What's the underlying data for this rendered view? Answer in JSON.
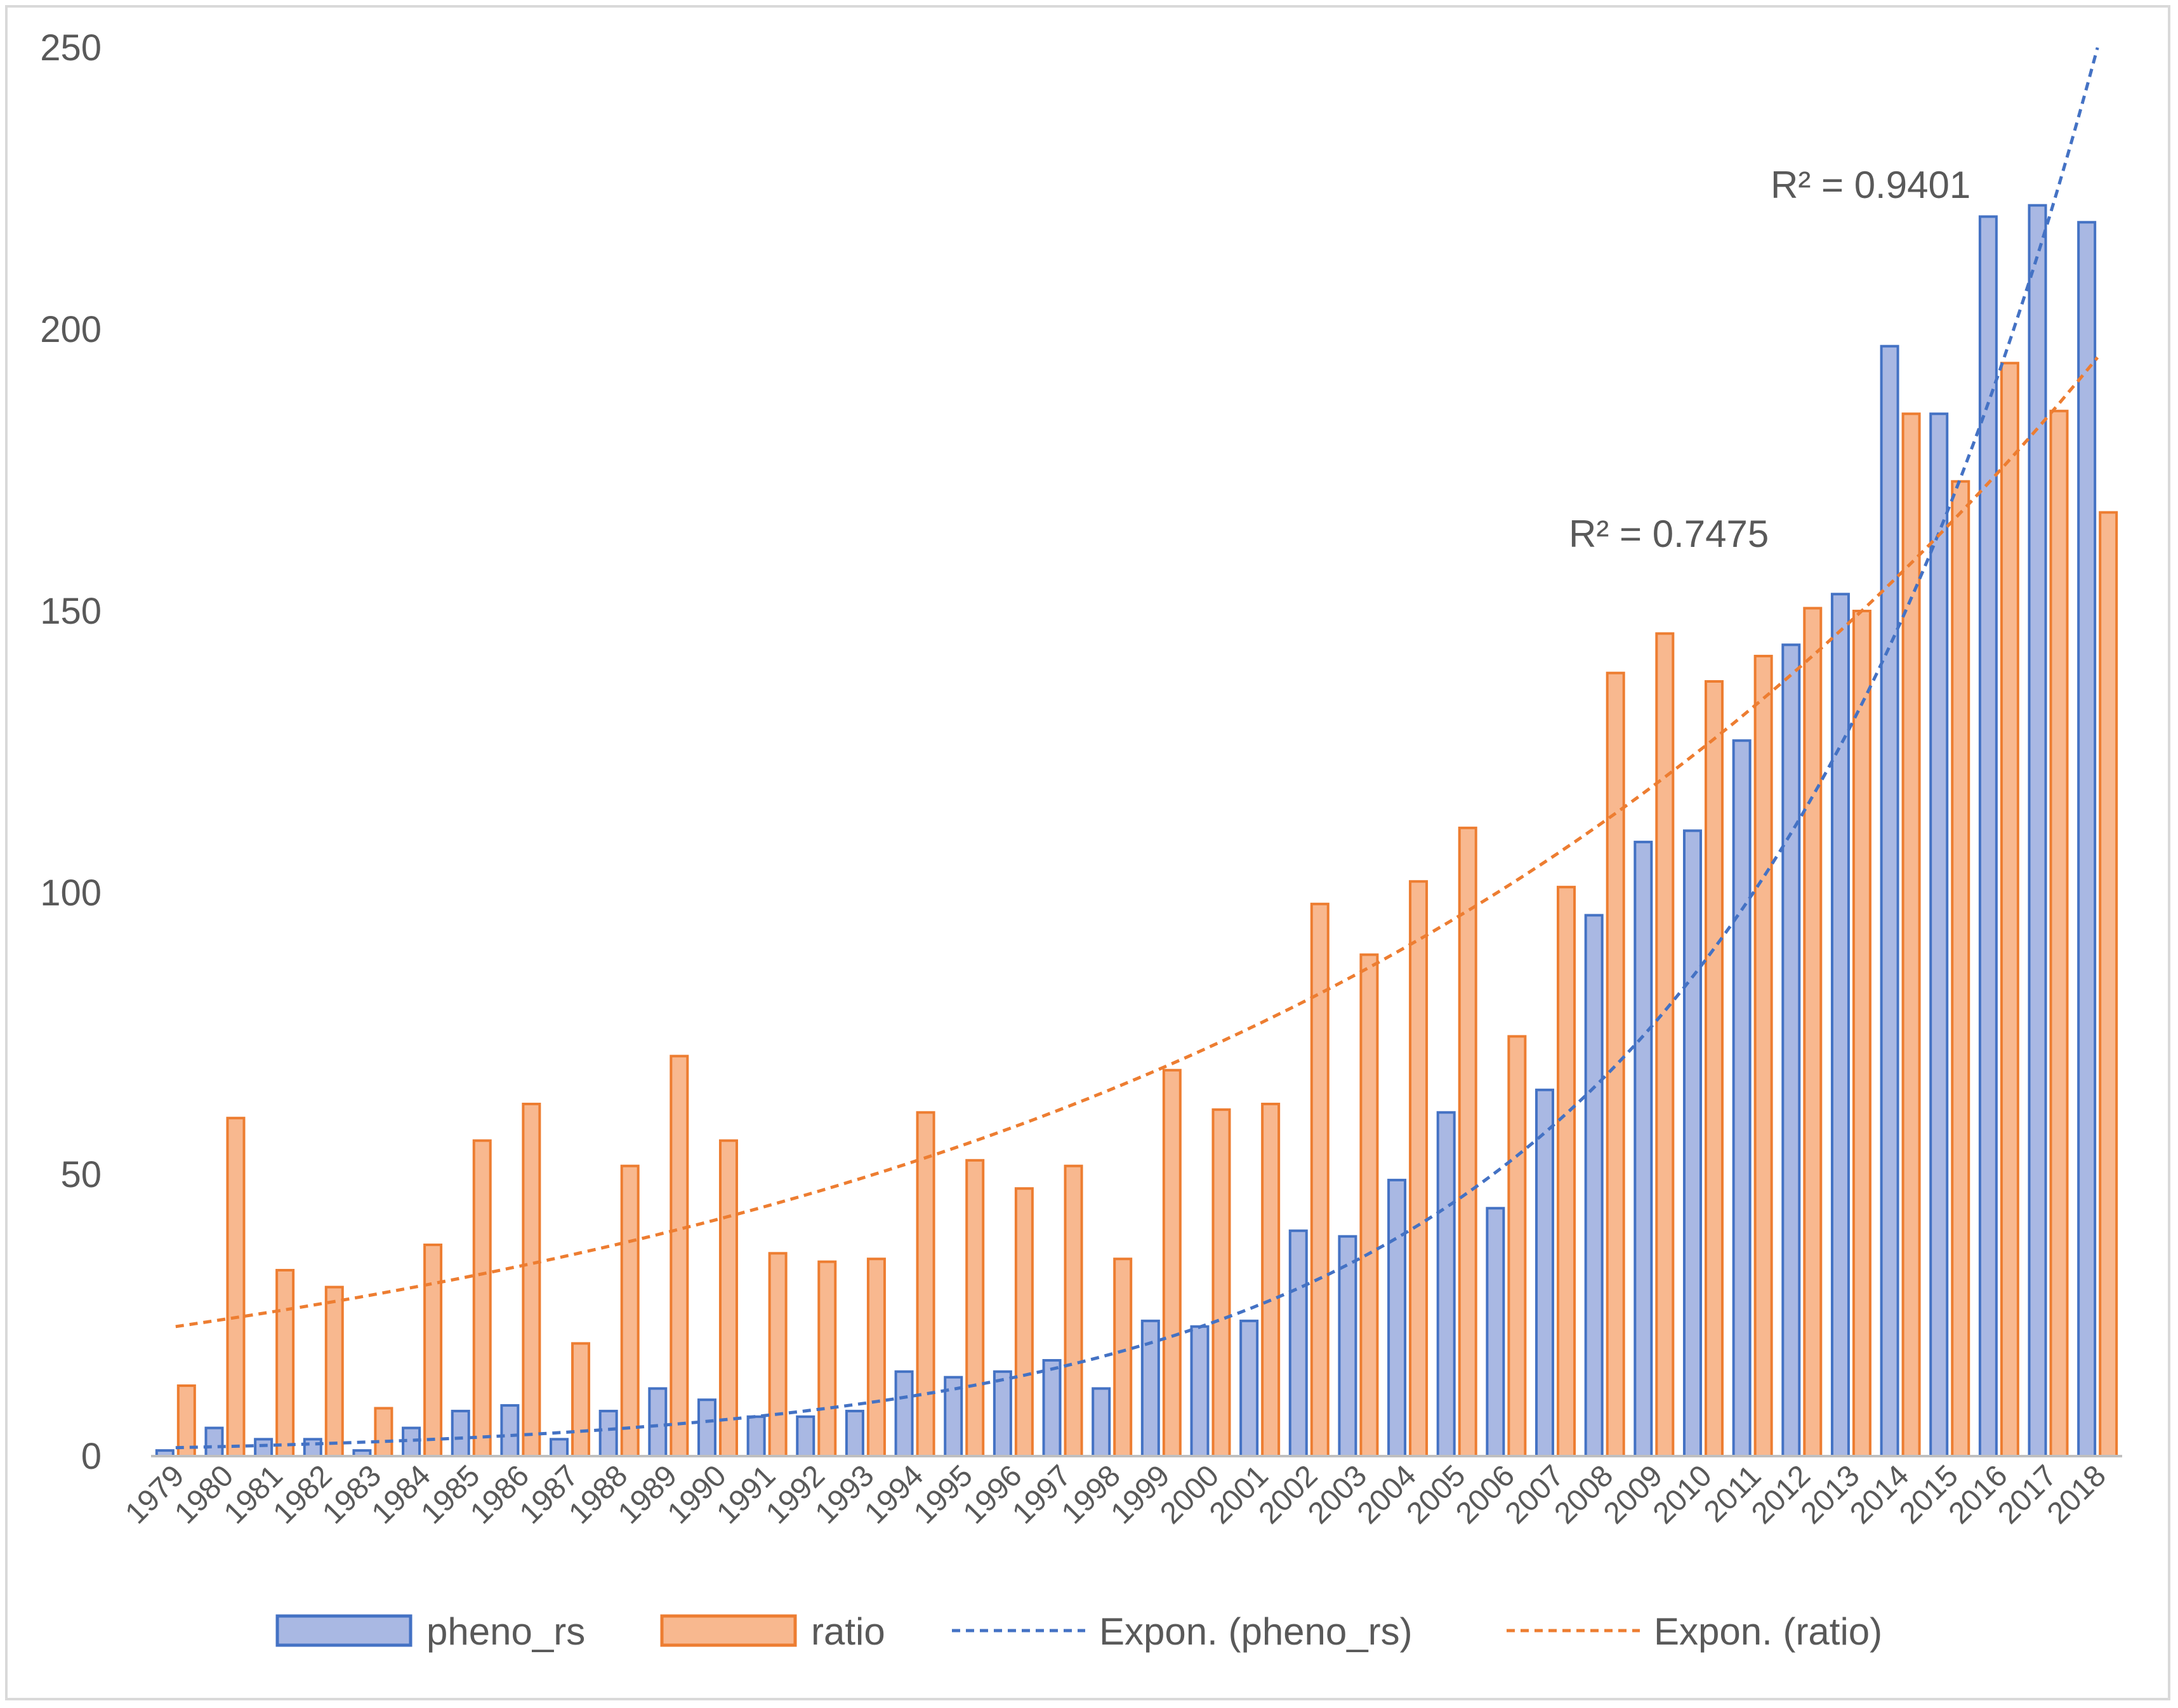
{
  "chart_data": {
    "type": "bar",
    "title": "",
    "xlabel": "",
    "ylabel": "",
    "ylim": [
      0,
      250
    ],
    "yticks": [
      0,
      50,
      100,
      150,
      200,
      250
    ],
    "grid": false,
    "legend_position": "bottom",
    "categories": [
      "1979",
      "1980",
      "1981",
      "1982",
      "1983",
      "1984",
      "1985",
      "1986",
      "1987",
      "1988",
      "1989",
      "1990",
      "1991",
      "1992",
      "1993",
      "1994",
      "1995",
      "1996",
      "1997",
      "1998",
      "1999",
      "2000",
      "2001",
      "2002",
      "2003",
      "2004",
      "2005",
      "2006",
      "2007",
      "2008",
      "2009",
      "2010",
      "2011",
      "2012",
      "2013",
      "2014",
      "2015",
      "2016",
      "2017",
      "2018"
    ],
    "series": [
      {
        "name": "pheno_rs",
        "color": "#4472c4",
        "fill": "#a9b8e3",
        "values": [
          1,
          5,
          3,
          3,
          1,
          5,
          8,
          9,
          3,
          8,
          12,
          10,
          7,
          7,
          8,
          15,
          14,
          15,
          17,
          12,
          24,
          23,
          24,
          40,
          39,
          49,
          61,
          44,
          65,
          96,
          109,
          111,
          127,
          144,
          153,
          197,
          185,
          220,
          222,
          219
        ]
      },
      {
        "name": "ratio",
        "color": "#ed7d31",
        "fill": "#f8b88f",
        "values": [
          12.5,
          60,
          33,
          30,
          8.5,
          37.5,
          56,
          62.5,
          20,
          51.5,
          71,
          56,
          36,
          34.5,
          35,
          61,
          52.5,
          47.5,
          51.5,
          35,
          68.5,
          61.5,
          62.5,
          98,
          89,
          102,
          111.5,
          74.5,
          101,
          139,
          146,
          137.5,
          142,
          150.5,
          150,
          185,
          173,
          194,
          185.5,
          167.5
        ]
      }
    ],
    "trendlines": [
      {
        "name": "Expon. (pheno_rs)",
        "series": "pheno_rs",
        "type": "exponential",
        "start": 1.5,
        "end": 250,
        "r2_label": "R² = 0.9401",
        "color": "#4472c4"
      },
      {
        "name": "Expon. (ratio)",
        "series": "ratio",
        "type": "exponential",
        "start": 23,
        "end": 195,
        "r2_label": "R² = 0.7475",
        "color": "#ed7d31"
      }
    ],
    "legend": [
      "pheno_rs",
      "ratio",
      "Expon. (pheno_rs)",
      "Expon. (ratio)"
    ]
  }
}
